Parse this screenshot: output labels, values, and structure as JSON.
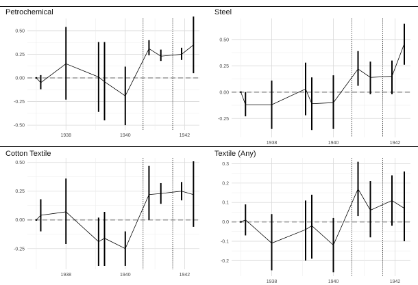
{
  "chart_data": [
    {
      "type": "line",
      "title": "Petrochemical",
      "x": [
        1937.0,
        1937.15,
        1938.0,
        1939.1,
        1939.3,
        1940.0,
        1940.8,
        1941.2,
        1941.9
      ],
      "y": [
        0.0,
        -0.05,
        0.15,
        0.01,
        -0.04,
        -0.19,
        0.31,
        0.23,
        0.25
      ],
      "y_low": [
        0.0,
        -0.12,
        -0.23,
        -0.36,
        -0.45,
        -0.5,
        0.24,
        0.18,
        0.19
      ],
      "y_high": [
        0.0,
        0.03,
        0.54,
        0.38,
        0.38,
        0.12,
        0.4,
        0.3,
        0.32
      ],
      "line_end": {
        "x": 1942.3,
        "y": 0.35
      },
      "last_bar": {
        "x": 1942.3,
        "low": 0.05,
        "high": 0.65
      },
      "xlim": [
        1936.7,
        1942.5
      ],
      "ylim": [
        -0.55,
        0.63
      ],
      "xticks": [
        "1938",
        "1940",
        "1942"
      ],
      "yticks": [
        "0.50",
        "0.25",
        "0.00",
        "-0.25",
        "-0.50"
      ],
      "ytick_values": [
        0.5,
        0.25,
        0.0,
        -0.25,
        -0.5
      ],
      "vlines": [
        1940.6,
        1941.6
      ],
      "grid": true
    },
    {
      "type": "line",
      "title": "Steel",
      "x": [
        1937.0,
        1937.15,
        1938.0,
        1939.1,
        1939.3,
        1940.0,
        1940.8,
        1941.2,
        1941.9
      ],
      "y": [
        0.0,
        -0.12,
        -0.12,
        0.03,
        -0.11,
        -0.1,
        0.22,
        0.14,
        0.15
      ],
      "y_low": [
        0.0,
        -0.23,
        -0.35,
        -0.22,
        -0.36,
        -0.35,
        0.06,
        -0.02,
        -0.02
      ],
      "y_high": [
        0.0,
        0.0,
        0.11,
        0.28,
        0.14,
        0.16,
        0.39,
        0.29,
        0.3
      ],
      "line_end": {
        "x": 1942.3,
        "y": 0.46
      },
      "last_bar": {
        "x": 1942.3,
        "low": 0.26,
        "high": 0.65
      },
      "xlim": [
        1936.7,
        1942.5
      ],
      "ylim": [
        -0.43,
        0.7
      ],
      "xticks": [
        "1938",
        "1940",
        "1942"
      ],
      "yticks": [
        "0.50",
        "0.25",
        "0.00",
        "-0.25"
      ],
      "ytick_values": [
        0.5,
        0.25,
        0.0,
        -0.25
      ],
      "vlines": [
        1940.6,
        1941.6
      ],
      "grid": true
    },
    {
      "type": "line",
      "title": "Cotton Textile",
      "x": [
        1937.0,
        1937.15,
        1938.0,
        1939.1,
        1939.3,
        1940.0,
        1940.8,
        1941.2,
        1941.9
      ],
      "y": [
        0.0,
        0.04,
        0.07,
        -0.19,
        -0.16,
        -0.25,
        0.22,
        0.23,
        0.25
      ],
      "y_low": [
        0.0,
        -0.1,
        -0.21,
        -0.4,
        -0.4,
        -0.4,
        0.0,
        0.14,
        0.17
      ],
      "y_high": [
        0.0,
        0.18,
        0.36,
        0.02,
        0.07,
        -0.1,
        0.47,
        0.32,
        0.33
      ],
      "line_end": {
        "x": 1942.3,
        "y": 0.22
      },
      "last_bar": {
        "x": 1942.3,
        "low": -0.06,
        "high": 0.51
      },
      "xlim": [
        1936.7,
        1942.5
      ],
      "ylim": [
        -0.43,
        0.54
      ],
      "xticks": [
        "1938",
        "1940",
        "1942"
      ],
      "yticks": [
        "0.50",
        "0.25",
        "0.00",
        "-0.25"
      ],
      "ytick_values": [
        0.5,
        0.25,
        0.0,
        -0.25
      ],
      "vlines": [
        1940.6,
        1941.6
      ],
      "grid": true
    },
    {
      "type": "line",
      "title": "Textile (Any)",
      "x": [
        1937.0,
        1937.15,
        1938.0,
        1939.1,
        1939.3,
        1940.0,
        1940.8,
        1941.2,
        1941.9
      ],
      "y": [
        0.0,
        0.01,
        -0.11,
        -0.04,
        -0.02,
        -0.12,
        0.17,
        0.06,
        0.11
      ],
      "y_low": [
        0.0,
        -0.07,
        -0.25,
        -0.2,
        -0.19,
        -0.26,
        0.03,
        -0.08,
        -0.02
      ],
      "y_high": [
        0.0,
        0.09,
        0.04,
        0.11,
        0.14,
        0.02,
        0.31,
        0.21,
        0.24
      ],
      "line_end": {
        "x": 1942.3,
        "y": 0.07
      },
      "last_bar": {
        "x": 1942.3,
        "low": -0.1,
        "high": 0.26
      },
      "xlim": [
        1936.7,
        1942.5
      ],
      "ylim": [
        -0.28,
        0.33
      ],
      "xticks": [
        "1938",
        "1940",
        "1942"
      ],
      "yticks": [
        "0.3",
        "0.2",
        "0.1",
        "0.0",
        "-0.1",
        "-0.2"
      ],
      "ytick_values": [
        0.3,
        0.2,
        0.1,
        0.0,
        -0.1,
        -0.2
      ],
      "vlines": [
        1940.6,
        1941.6
      ],
      "grid": true
    }
  ]
}
